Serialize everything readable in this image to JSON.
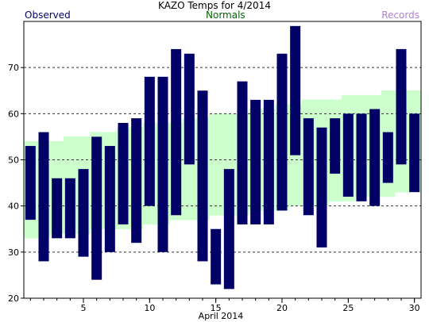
{
  "chart_data": {
    "type": "bar",
    "title": "KAZO Temps for 4/2014",
    "xlabel": "April 2014",
    "ylabel": "",
    "legend": [
      {
        "label": "Observed",
        "color": "#000066"
      },
      {
        "label": "Normals",
        "color": "#006600"
      },
      {
        "label": "Records",
        "color": "#b080d0"
      }
    ],
    "x_ticks": [
      5,
      10,
      15,
      20,
      25,
      30
    ],
    "y_ticks": [
      20,
      30,
      40,
      50,
      60,
      70
    ],
    "ylim": [
      20,
      80
    ],
    "xlim": [
      0.5,
      30.5
    ],
    "grid": "horizontal-dashed",
    "colors": {
      "observed": "#000066",
      "normals": "#ccffcc"
    },
    "series": [
      {
        "name": "Observed",
        "days": [
          1,
          2,
          3,
          4,
          5,
          6,
          7,
          8,
          9,
          10,
          11,
          12,
          13,
          14,
          15,
          16,
          17,
          18,
          19,
          20,
          21,
          22,
          23,
          24,
          25,
          26,
          27,
          28,
          29,
          30
        ],
        "high": [
          53,
          56,
          46,
          46,
          48,
          55,
          53,
          58,
          59,
          68,
          68,
          74,
          73,
          65,
          35,
          48,
          67,
          63,
          63,
          73,
          79,
          59,
          57,
          59,
          60,
          60,
          61,
          56,
          74,
          60
        ],
        "low": [
          37,
          28,
          33,
          33,
          29,
          24,
          30,
          36,
          32,
          40,
          30,
          38,
          49,
          28,
          23,
          22,
          36,
          36,
          36,
          39,
          51,
          38,
          31,
          47,
          42,
          41,
          40,
          45,
          49,
          43
        ]
      },
      {
        "name": "Normals",
        "days": [
          1,
          2,
          3,
          4,
          5,
          6,
          7,
          8,
          9,
          10,
          11,
          12,
          13,
          14,
          15,
          16,
          17,
          18,
          19,
          20,
          21,
          22,
          23,
          24,
          25,
          26,
          27,
          28,
          29,
          30
        ],
        "high": [
          54,
          54,
          54,
          55,
          55,
          56,
          56,
          57,
          57,
          58,
          58,
          58,
          59,
          59,
          60,
          60,
          60,
          61,
          61,
          62,
          62,
          63,
          63,
          63,
          64,
          64,
          64,
          65,
          65,
          65
        ],
        "low": [
          33,
          33,
          34,
          34,
          34,
          35,
          35,
          35,
          35,
          36,
          36,
          37,
          37,
          37,
          38,
          38,
          38,
          39,
          39,
          39,
          40,
          40,
          40,
          41,
          41,
          42,
          42,
          42,
          43,
          43
        ]
      }
    ]
  }
}
